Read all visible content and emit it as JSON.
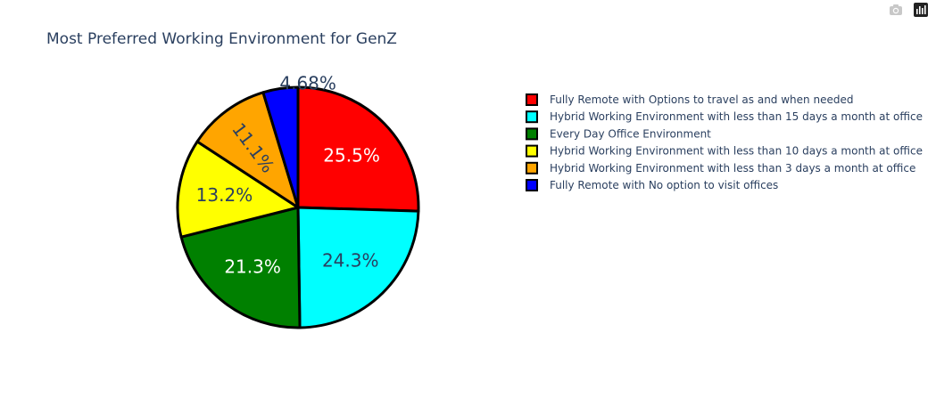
{
  "toolbar": {
    "camera_icon": "camera-icon",
    "plotly_logo": "plotly-logo-icon"
  },
  "chart_data": {
    "type": "pie",
    "title": "Most Preferred Working Environment for GenZ",
    "legend_position": "right",
    "slice_border_color": "#000000",
    "slices": [
      {
        "label": "Fully Remote with Options to travel as and when needed",
        "value": 25.5,
        "text": "25.5%",
        "color": "#ff0000",
        "text_color": "#ffffff"
      },
      {
        "label": "Hybrid Working Environment with less than 15 days a month at office",
        "value": 24.3,
        "text": "24.3%",
        "color": "#00ffff",
        "text_color": "#2a3f5f"
      },
      {
        "label": "Every Day Office Environment",
        "value": 21.3,
        "text": "21.3%",
        "color": "#008000",
        "text_color": "#ffffff"
      },
      {
        "label": "Hybrid Working Environment with less than 10 days a month at office",
        "value": 13.2,
        "text": "13.2%",
        "color": "#ffff00",
        "text_color": "#2a3f5f"
      },
      {
        "label": "Hybrid Working Environment with less than 3 days a month at office",
        "value": 11.1,
        "text": "11.1%",
        "color": "#ffa500",
        "text_color": "#2a3f5f"
      },
      {
        "label": "Fully Remote with No option to visit offices",
        "value": 4.68,
        "text": "4.68%",
        "color": "#0000ff",
        "text_color": "#2a3f5f"
      }
    ]
  }
}
